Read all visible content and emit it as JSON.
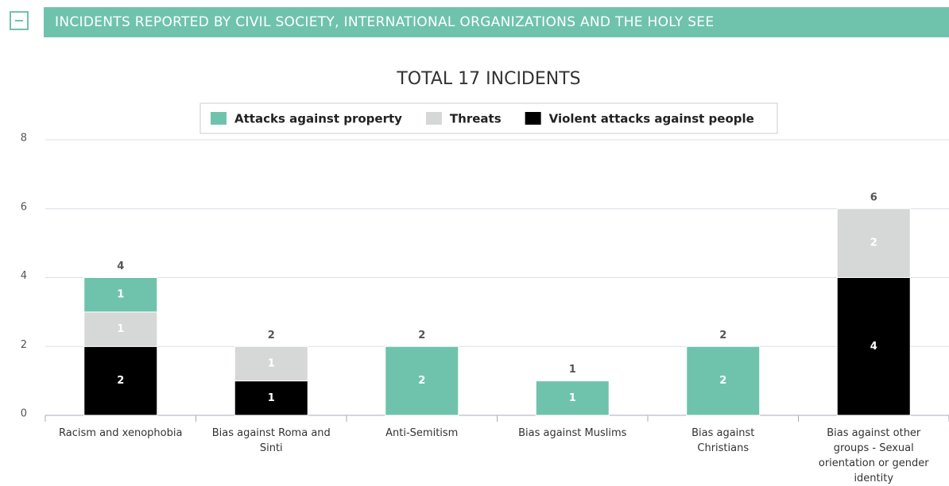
{
  "header": {
    "title": "INCIDENTS REPORTED BY CIVIL SOCIETY, INTERNATIONAL ORGANIZATIONS AND THE HOLY SEE"
  },
  "chart_data": {
    "type": "stacked_bar",
    "title": "TOTAL 17 INCIDENTS",
    "categories": [
      "Racism and xenophobia",
      "Bias against Roma and Sinti",
      "Anti-Semitism",
      "Bias against Muslims",
      "Bias against Christians",
      "Bias against other groups - Sexual orientation or gender identity"
    ],
    "series": [
      {
        "name": "Attacks against property",
        "color": "#6fc3ac",
        "values": [
          1,
          0,
          2,
          1,
          2,
          0
        ]
      },
      {
        "name": "Threats",
        "color": "#d5d8d7",
        "values": [
          1,
          1,
          0,
          0,
          0,
          2
        ]
      },
      {
        "name": "Violent attacks against people",
        "color": "#000000",
        "values": [
          2,
          1,
          0,
          0,
          0,
          4
        ]
      }
    ],
    "stack_order": "bottom_to_top_reversed",
    "totals": [
      4,
      2,
      2,
      1,
      2,
      6
    ],
    "ylim": [
      0,
      8
    ],
    "yticks": [
      0,
      2,
      4,
      6,
      8
    ],
    "grid": true
  }
}
